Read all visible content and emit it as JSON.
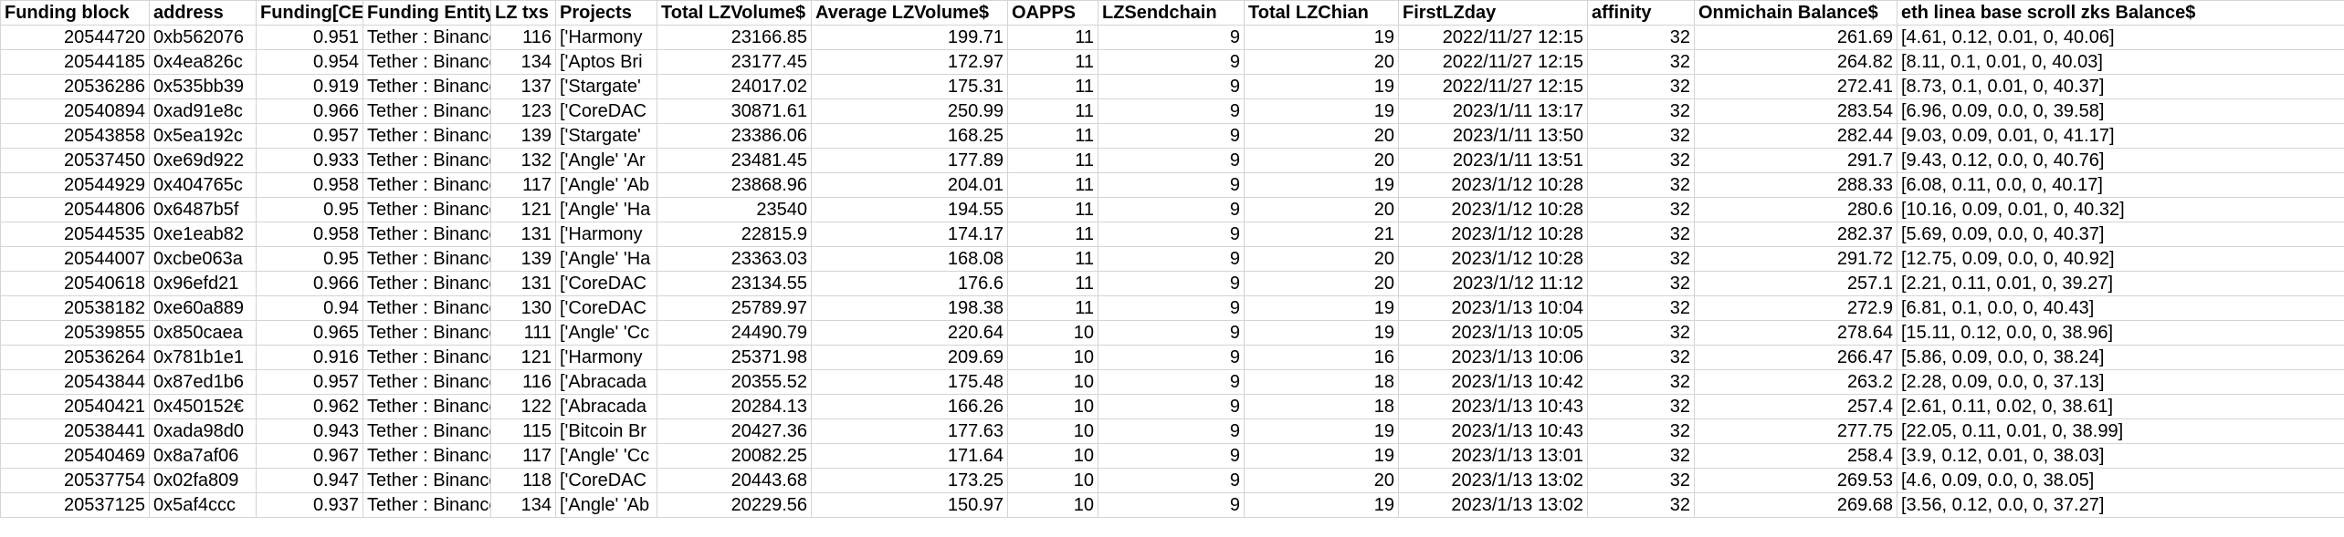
{
  "headers": [
    "Funding block",
    "address",
    "Funding[CELO]",
    "Funding Entity",
    "LZ txs",
    "Projects",
    "Total LZVolume$",
    "Average LZVolume$",
    "OAPPS",
    "LZSendchain",
    "Total LZChian",
    "FirstLZday",
    "affinity",
    "Onmichain Balance$",
    "eth linea base scroll zks Balance$"
  ],
  "rows": [
    [
      "20544720",
      "0xb562076",
      "0.951",
      "Tether : Binance",
      "116",
      "['Harmony",
      "23166.85",
      "199.71",
      "11",
      "9",
      "19",
      "2022/11/27 12:15",
      "32",
      "261.69",
      "[4.61, 0.12, 0.01, 0, 40.06]"
    ],
    [
      "20544185",
      "0x4ea826c",
      "0.954",
      "Tether : Binance",
      "134",
      "['Aptos Bri",
      "23177.45",
      "172.97",
      "11",
      "9",
      "20",
      "2022/11/27 12:15",
      "32",
      "264.82",
      "[8.11, 0.1, 0.01, 0, 40.03]"
    ],
    [
      "20536286",
      "0x535bb39",
      "0.919",
      "Tether : Binance",
      "137",
      "['Stargate'",
      "24017.02",
      "175.31",
      "11",
      "9",
      "19",
      "2022/11/27 12:15",
      "32",
      "272.41",
      "[8.73, 0.1, 0.01, 0, 40.37]"
    ],
    [
      "20540894",
      "0xad91e8c",
      "0.966",
      "Tether : Binance",
      "123",
      "['CoreDAC",
      "30871.61",
      "250.99",
      "11",
      "9",
      "19",
      "2023/1/11 13:17",
      "32",
      "283.54",
      "[6.96, 0.09, 0.0, 0, 39.58]"
    ],
    [
      "20543858",
      "0x5ea192c",
      "0.957",
      "Tether : Binance",
      "139",
      "['Stargate'",
      "23386.06",
      "168.25",
      "11",
      "9",
      "20",
      "2023/1/11 13:50",
      "32",
      "282.44",
      "[9.03, 0.09, 0.01, 0, 41.17]"
    ],
    [
      "20537450",
      "0xe69d922",
      "0.933",
      "Tether : Binance",
      "132",
      "['Angle' 'Ar",
      "23481.45",
      "177.89",
      "11",
      "9",
      "20",
      "2023/1/11 13:51",
      "32",
      "291.7",
      "[9.43, 0.12, 0.0, 0, 40.76]"
    ],
    [
      "20544929",
      "0x404765c",
      "0.958",
      "Tether : Binance",
      "117",
      "['Angle' 'Ab",
      "23868.96",
      "204.01",
      "11",
      "9",
      "19",
      "2023/1/12 10:28",
      "32",
      "288.33",
      "[6.08, 0.11, 0.0, 0, 40.17]"
    ],
    [
      "20544806",
      "0x6487b5f",
      "0.95",
      "Tether : Binance",
      "121",
      "['Angle' 'Ha",
      "23540",
      "194.55",
      "11",
      "9",
      "20",
      "2023/1/12 10:28",
      "32",
      "280.6",
      "[10.16, 0.09, 0.01, 0, 40.32]"
    ],
    [
      "20544535",
      "0xe1eab82",
      "0.958",
      "Tether : Binance",
      "131",
      "['Harmony",
      "22815.9",
      "174.17",
      "11",
      "9",
      "21",
      "2023/1/12 10:28",
      "32",
      "282.37",
      "[5.69, 0.09, 0.0, 0, 40.37]"
    ],
    [
      "20544007",
      "0xcbe063a",
      "0.95",
      "Tether : Binance",
      "139",
      "['Angle' 'Ha",
      "23363.03",
      "168.08",
      "11",
      "9",
      "20",
      "2023/1/12 10:28",
      "32",
      "291.72",
      "[12.75, 0.09, 0.0, 0, 40.92]"
    ],
    [
      "20540618",
      "0x96efd21",
      "0.966",
      "Tether : Binance",
      "131",
      "['CoreDAC",
      "23134.55",
      "176.6",
      "11",
      "9",
      "20",
      "2023/1/12 11:12",
      "32",
      "257.1",
      "[2.21, 0.11, 0.01, 0, 39.27]"
    ],
    [
      "20538182",
      "0xe60a889",
      "0.94",
      "Tether : Binance",
      "130",
      "['CoreDAC",
      "25789.97",
      "198.38",
      "11",
      "9",
      "19",
      "2023/1/13 10:04",
      "32",
      "272.9",
      "[6.81, 0.1, 0.0, 0, 40.43]"
    ],
    [
      "20539855",
      "0x850caea",
      "0.965",
      "Tether : Binance",
      "111",
      "['Angle' 'Cc",
      "24490.79",
      "220.64",
      "10",
      "9",
      "19",
      "2023/1/13 10:05",
      "32",
      "278.64",
      "[15.11, 0.12, 0.0, 0, 38.96]"
    ],
    [
      "20536264",
      "0x781b1e1",
      "0.916",
      "Tether : Binance",
      "121",
      "['Harmony",
      "25371.98",
      "209.69",
      "10",
      "9",
      "16",
      "2023/1/13 10:06",
      "32",
      "266.47",
      "[5.86, 0.09, 0.0, 0, 38.24]"
    ],
    [
      "20543844",
      "0x87ed1b6",
      "0.957",
      "Tether : Binance",
      "116",
      "['Abracada",
      "20355.52",
      "175.48",
      "10",
      "9",
      "18",
      "2023/1/13 10:42",
      "32",
      "263.2",
      "[2.28, 0.09, 0.0, 0, 37.13]"
    ],
    [
      "20540421",
      "0x450152€",
      "0.962",
      "Tether : Binance",
      "122",
      "['Abracada",
      "20284.13",
      "166.26",
      "10",
      "9",
      "18",
      "2023/1/13 10:43",
      "32",
      "257.4",
      "[2.61, 0.11, 0.02, 0, 38.61]"
    ],
    [
      "20538441",
      "0xada98d0",
      "0.943",
      "Tether : Binance",
      "115",
      "['Bitcoin Br",
      "20427.36",
      "177.63",
      "10",
      "9",
      "19",
      "2023/1/13 10:43",
      "32",
      "277.75",
      "[22.05, 0.11, 0.01, 0, 38.99]"
    ],
    [
      "20540469",
      "0x8a7af06",
      "0.967",
      "Tether : Binance",
      "117",
      "['Angle' 'Cc",
      "20082.25",
      "171.64",
      "10",
      "9",
      "19",
      "2023/1/13 13:01",
      "32",
      "258.4",
      "[3.9, 0.12, 0.01, 0, 38.03]"
    ],
    [
      "20537754",
      "0x02fa809",
      "0.947",
      "Tether : Binance",
      "118",
      "['CoreDAC",
      "20443.68",
      "173.25",
      "10",
      "9",
      "20",
      "2023/1/13 13:02",
      "32",
      "269.53",
      "[4.6, 0.09, 0.0, 0, 38.05]"
    ],
    [
      "20537125",
      "0x5af4ccc",
      "0.937",
      "Tether : Binance",
      "134",
      "['Angle' 'Ab",
      "20229.56",
      "150.97",
      "10",
      "9",
      "19",
      "2023/1/13 13:02",
      "32",
      "269.68",
      "[3.56, 0.12, 0.0, 0, 37.27]"
    ]
  ]
}
